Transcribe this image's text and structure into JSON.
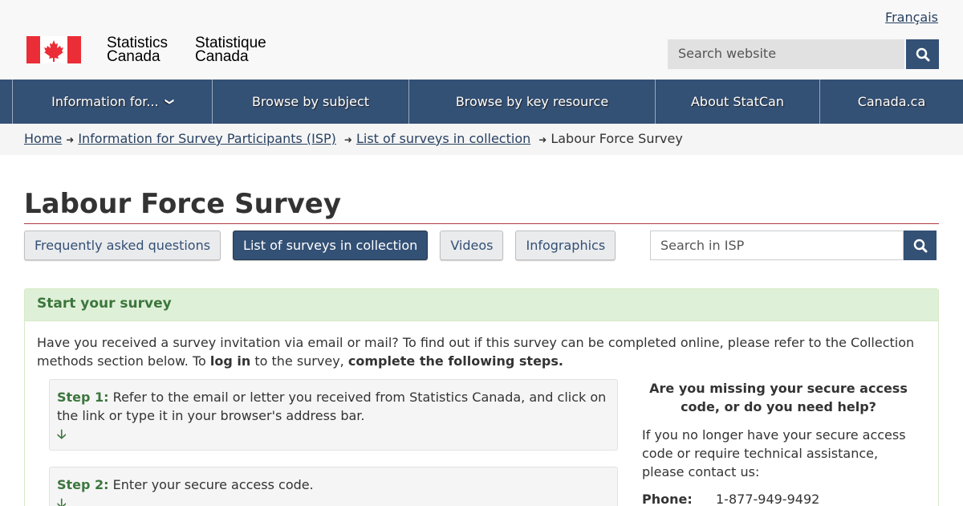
{
  "header": {
    "language_link": "Français",
    "logo_en": "Statistics Canada",
    "logo_fr": "Statistique Canada",
    "search_placeholder": "Search website",
    "search_icon": "magnifier-icon"
  },
  "nav": [
    {
      "label": "Information for...",
      "icon": "chevron-down-icon"
    },
    {
      "label": "Browse by subject"
    },
    {
      "label": "Browse by key resource"
    },
    {
      "label": "About StatCan"
    },
    {
      "label": "Canada.ca"
    }
  ],
  "breadcrumb": [
    "Home",
    "Information for Survey Participants (ISP)",
    "List of surveys in collection",
    "Labour Force Survey"
  ],
  "page_title": "Labour Force Survey",
  "buttons": [
    "Frequently asked questions",
    "List of surveys in collection",
    "Videos",
    "Infographics"
  ],
  "isp_search_placeholder": "Search in ISP",
  "panel": {
    "title": "Start your survey",
    "intro_1": "Have you received a survey invitation via email or mail? To find out if this survey can be completed online, please refer to the Collection methods section below. To ",
    "intro_bold_1": "log in",
    "intro_2": " to the survey, ",
    "intro_bold_2": "complete the following steps.",
    "steps": [
      {
        "label": "Step 1:",
        "text": " Refer to the email or letter you received from Statistics Canada, and click on the link or type it in your browser's address bar."
      },
      {
        "label": "Step 2:",
        "text": " Enter your secure access code."
      }
    ],
    "help_title": "Are you missing your secure access code, or do you need help?",
    "help_text": "If you no longer have your secure access code or require technical assistance, please contact us:",
    "phone_label": "Phone:",
    "phone": "1-877-949-9492"
  },
  "colors": {
    "brand": "#335075",
    "accent_red": "#af3c43",
    "success": "#3c763d"
  }
}
